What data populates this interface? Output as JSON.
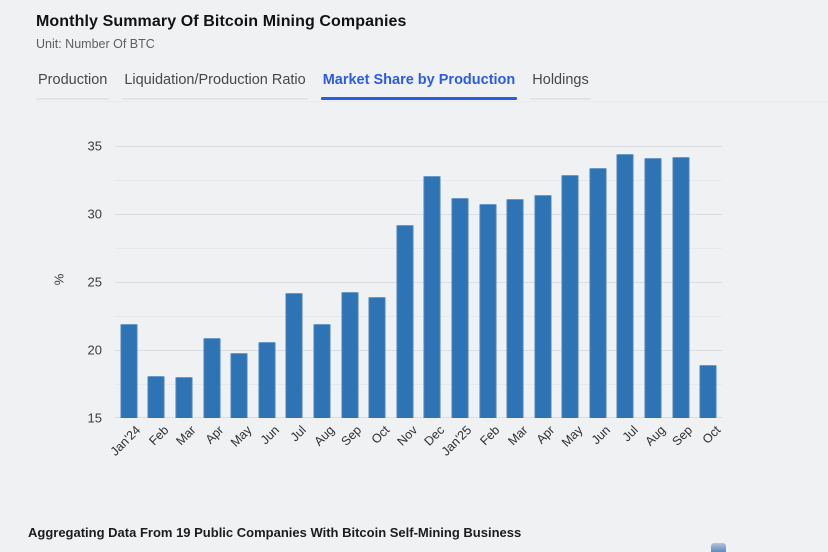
{
  "header": {
    "title": "Monthly Summary Of Bitcoin Mining Companies",
    "subtitle": "Unit: Number Of BTC"
  },
  "tabs": [
    {
      "id": "production",
      "label": "Production",
      "active": false
    },
    {
      "id": "liquidation-production-ratio",
      "label": "Liquidation/Production Ratio",
      "active": false
    },
    {
      "id": "market-share-by-production",
      "label": "Market Share by Production",
      "active": true
    },
    {
      "id": "holdings",
      "label": "Holdings",
      "active": false
    }
  ],
  "chart_data": {
    "type": "bar",
    "title": "Market Share by Production",
    "ylabel": "%",
    "ylim": [
      15,
      35
    ],
    "yticks": [
      35,
      30,
      25,
      20,
      15
    ],
    "grid": true,
    "legend": "none",
    "bar_color": "#2e74b5",
    "categories": [
      "Jan'24",
      "Feb",
      "Mar",
      "Apr",
      "May",
      "Jun",
      "Jul",
      "Aug",
      "Sep",
      "Oct",
      "Nov",
      "Dec",
      "Jan'25",
      "Feb",
      "Mar",
      "Apr",
      "May",
      "Jun",
      "Jul",
      "Aug",
      "Sep",
      "Oct"
    ],
    "values": [
      21.9,
      18.1,
      18.0,
      20.9,
      19.8,
      20.6,
      24.2,
      21.9,
      24.3,
      23.9,
      29.2,
      32.8,
      31.2,
      30.7,
      31.1,
      31.4,
      32.9,
      33.4,
      34.4,
      34.1,
      34.2,
      18.9
    ]
  },
  "footer": {
    "note": "Aggregating Data From 19 Public Companies With Bitcoin Self-Mining Business"
  },
  "colors": {
    "background": "#f0f1f2",
    "accent_tab": "#2b5ce5",
    "bar": "#2e74b5",
    "grid_major": "#dcdde0",
    "grid_minor": "#e8e9eb"
  }
}
